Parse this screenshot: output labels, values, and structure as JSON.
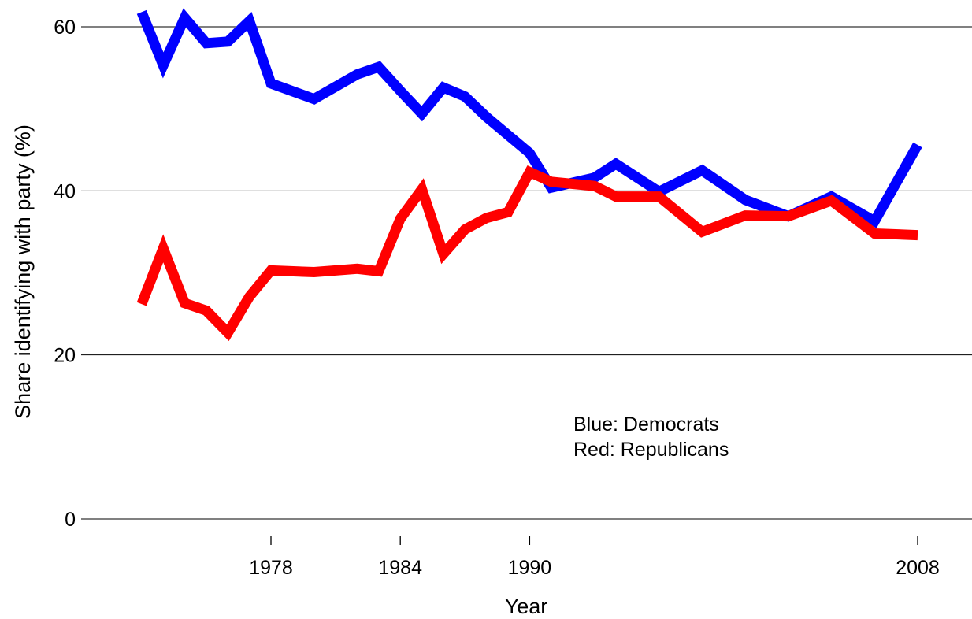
{
  "chart_data": {
    "type": "line",
    "title": "",
    "xlabel": "Year",
    "ylabel": "Share identifying with party (%)",
    "xlim": [
      1969,
      2010
    ],
    "ylim": [
      0,
      62
    ],
    "x_ticks": [
      1978,
      1984,
      1990,
      2008
    ],
    "y_ticks": [
      0,
      20,
      40,
      60
    ],
    "grid": "horizontal",
    "annotation_lines": [
      "Blue: Democrats",
      "Red: Republicans"
    ],
    "series": [
      {
        "color": "#0000ff",
        "x": [
          1972,
          1973,
          1974,
          1975,
          1976,
          1977,
          1978,
          1980,
          1982,
          1983,
          1984,
          1985,
          1986,
          1987,
          1988,
          1989,
          1990,
          1991,
          1993,
          1994,
          1996,
          1998,
          2000,
          2002,
          2004,
          2006,
          2008
        ],
        "y": [
          61.8,
          55.3,
          61.1,
          58,
          58.2,
          60.7,
          53.1,
          51.2,
          54.2,
          55.1,
          52.2,
          49.4,
          52.6,
          51.5,
          49,
          46.8,
          44.6,
          40.4,
          41.6,
          43.3,
          39.9,
          42.5,
          38.9,
          36.9,
          39.3,
          36.3,
          45.6
        ]
      },
      {
        "color": "#ff0000",
        "x": [
          1972,
          1973,
          1974,
          1975,
          1976,
          1977,
          1978,
          1980,
          1982,
          1983,
          1984,
          1985,
          1986,
          1987,
          1988,
          1989,
          1990,
          1991,
          1993,
          1994,
          1996,
          1998,
          2000,
          2002,
          2004,
          2006,
          2008
        ],
        "y": [
          26.2,
          33,
          26.3,
          25.4,
          22.7,
          27.1,
          30.3,
          30.1,
          30.5,
          30.2,
          36.6,
          40.2,
          32.3,
          35.3,
          36.7,
          37.4,
          42.3,
          41.1,
          40.6,
          39.3,
          39.3,
          35,
          37,
          36.9,
          38.8,
          34.8,
          34.6
        ]
      }
    ]
  }
}
